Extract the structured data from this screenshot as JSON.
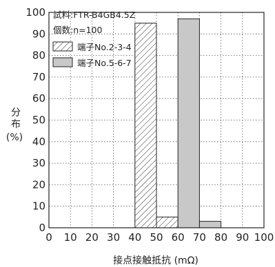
{
  "chart_data": {
    "type": "bar",
    "title": "",
    "xlabel": "接点接触抵抗 (mΩ)",
    "ylabel_lines": [
      "分",
      "布",
      "(%)"
    ],
    "xlim": [
      0,
      100
    ],
    "ylim": [
      0,
      100
    ],
    "xticks": [
      0,
      10,
      20,
      30,
      40,
      50,
      60,
      70,
      80,
      90,
      100
    ],
    "yticks": [
      0,
      10,
      20,
      30,
      40,
      50,
      60,
      70,
      80,
      90,
      100
    ],
    "grid": true,
    "legend_position": "top-left",
    "legend_info": [
      "試料:FTR-B4GB4.5Z",
      "個数:n=100"
    ],
    "series": [
      {
        "name": "端子No.2-3-4",
        "style": "hatched",
        "bins": [
          {
            "x0": 40,
            "x1": 50,
            "value": 95
          },
          {
            "x0": 50,
            "x1": 60,
            "value": 5
          }
        ]
      },
      {
        "name": "端子No.5-6-7",
        "style": "filled",
        "color": "#c8c8c8",
        "bins": [
          {
            "x0": 60,
            "x1": 70,
            "value": 97
          },
          {
            "x0": 70,
            "x1": 80,
            "value": 3
          }
        ]
      }
    ]
  }
}
